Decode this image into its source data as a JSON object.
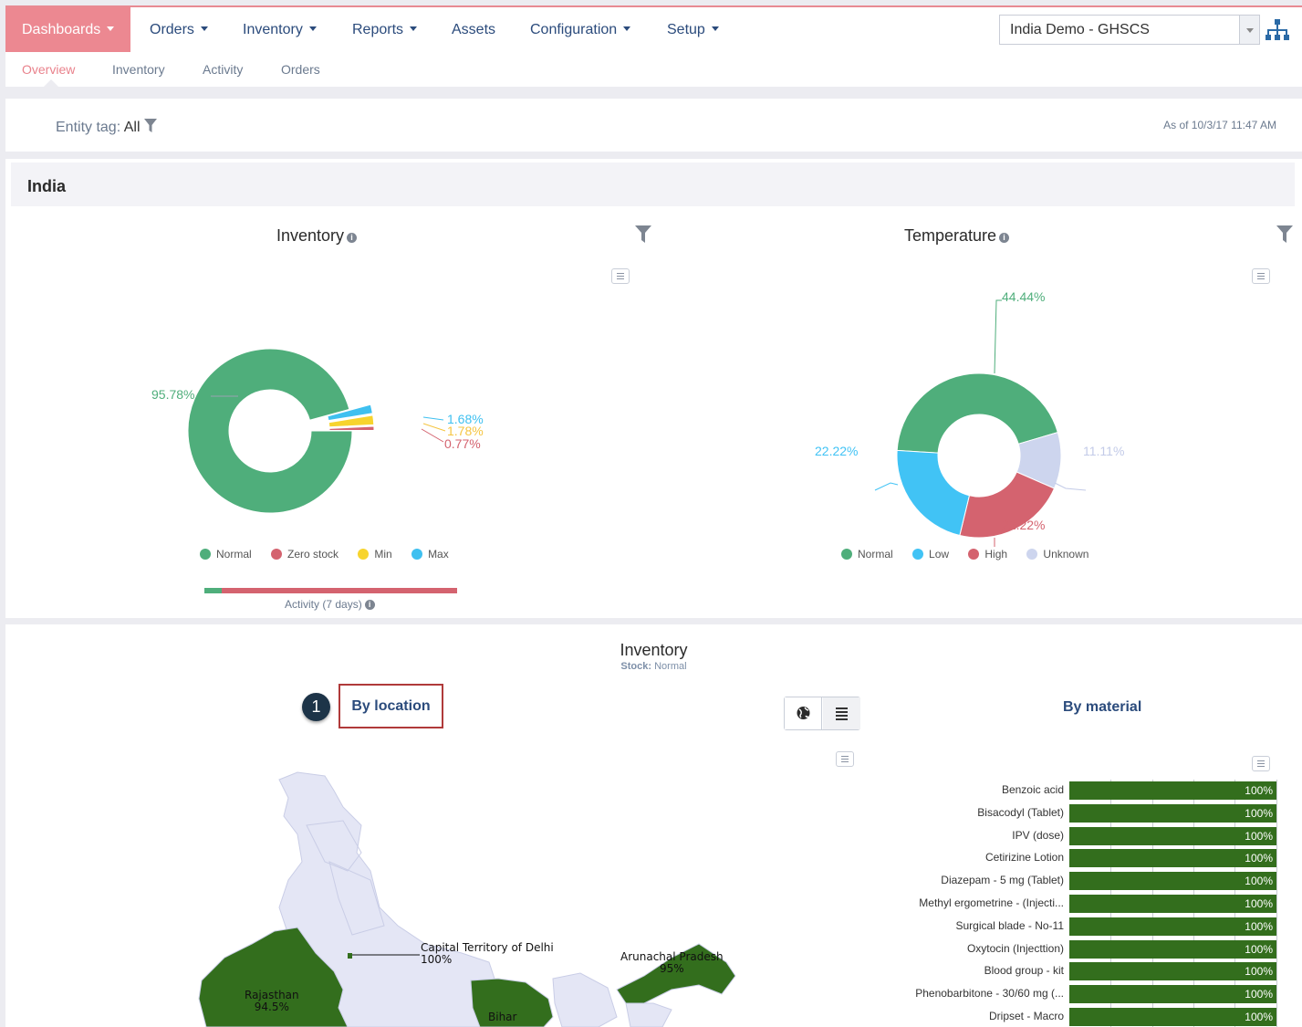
{
  "nav": {
    "items": [
      {
        "label": "Dashboards",
        "dropdown": true
      },
      {
        "label": "Orders",
        "dropdown": true
      },
      {
        "label": "Inventory",
        "dropdown": true
      },
      {
        "label": "Reports",
        "dropdown": true
      },
      {
        "label": "Assets",
        "dropdown": false
      },
      {
        "label": "Configuration",
        "dropdown": true
      },
      {
        "label": "Setup",
        "dropdown": true
      }
    ],
    "domain": "India Demo - GHSCS"
  },
  "subnav": [
    "Overview",
    "Inventory",
    "Activity",
    "Orders"
  ],
  "filter": {
    "entity_tag_label": "Entity tag:",
    "entity_tag_value": "All",
    "as_of": "As of 10/3/17 11:47 AM"
  },
  "panel": {
    "title": "India"
  },
  "colors": {
    "normal": "#4fae7b",
    "zero_stock": "#d4636f",
    "min": "#f7d42e",
    "max": "#3fc0f0",
    "low": "#41c3f5",
    "high": "#d4636f",
    "unknown": "#cdd5ee",
    "accent": "#ec8891",
    "nav_text": "#2b4b7c"
  },
  "inventory_chart": {
    "title": "Inventory",
    "legend": [
      "Normal",
      "Zero stock",
      "Min",
      "Max"
    ],
    "activity_label": "Activity (7 days)",
    "chart_data": {
      "type": "pie",
      "title": "Inventory",
      "categories": [
        "Normal",
        "Max",
        "Min",
        "Zero stock"
      ],
      "values": [
        95.78,
        1.68,
        1.78,
        0.77
      ],
      "labels": [
        "95.78%",
        "1.68%",
        "1.78%",
        "0.77%"
      ]
    }
  },
  "temperature_chart": {
    "title": "Temperature",
    "legend": [
      "Normal",
      "Low",
      "High",
      "Unknown"
    ],
    "chart_data": {
      "type": "pie",
      "title": "Temperature",
      "categories": [
        "Normal",
        "Unknown",
        "High",
        "Low"
      ],
      "values": [
        44.44,
        11.11,
        22.22,
        22.22
      ],
      "labels": [
        "44.44%",
        "11.11%",
        "22.22%",
        "22.22%"
      ]
    }
  },
  "bottom": {
    "title": "Inventory",
    "stock_label": "Stock:",
    "stock_value": "Normal",
    "callout_number": "1",
    "by_location": "By location",
    "by_material": "By material",
    "map_labels": [
      {
        "name": "Capital Territory of Delhi",
        "value": "100%"
      },
      {
        "name": "Arunachal Pradesh",
        "value": "95%"
      },
      {
        "name": "Rajasthan",
        "value": "94.5%"
      },
      {
        "name": "Bihar",
        "value": ""
      }
    ]
  },
  "material_chart": {
    "chart_data": {
      "type": "bar",
      "title": "By material",
      "categories": [
        "Benzoic acid",
        "Bisacodyl (Tablet)",
        "IPV (dose)",
        "Cetirizine Lotion",
        "Diazepam - 5 mg (Tablet)",
        "Methyl ergometrine - (Injecti...",
        "Surgical blade - No-11",
        "Oxytocin (Injecttion)",
        "Blood group - kit",
        "Phenobarbitone - 30/60 mg (...",
        "Dripset - Macro"
      ],
      "values": [
        100,
        100,
        100,
        100,
        100,
        100,
        100,
        100,
        100,
        100,
        100
      ],
      "labels": [
        "100%",
        "100%",
        "100%",
        "100%",
        "100%",
        "100%",
        "100%",
        "100%",
        "100%",
        "100%",
        "100%"
      ],
      "xlim": [
        0,
        100
      ]
    }
  }
}
